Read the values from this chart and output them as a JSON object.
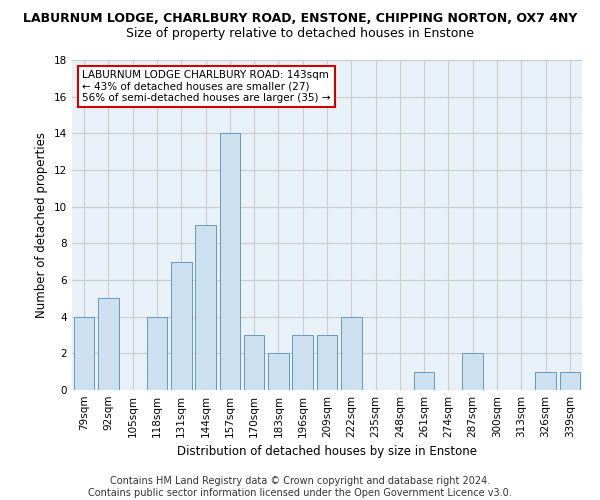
{
  "title": "LABURNUM LODGE, CHARLBURY ROAD, ENSTONE, CHIPPING NORTON, OX7 4NY",
  "subtitle": "Size of property relative to detached houses in Enstone",
  "xlabel": "Distribution of detached houses by size in Enstone",
  "ylabel": "Number of detached properties",
  "bins": [
    "79sqm",
    "92sqm",
    "105sqm",
    "118sqm",
    "131sqm",
    "144sqm",
    "157sqm",
    "170sqm",
    "183sqm",
    "196sqm",
    "209sqm",
    "222sqm",
    "235sqm",
    "248sqm",
    "261sqm",
    "274sqm",
    "287sqm",
    "300sqm",
    "313sqm",
    "326sqm",
    "339sqm"
  ],
  "values": [
    4,
    5,
    0,
    4,
    7,
    9,
    14,
    3,
    2,
    3,
    3,
    4,
    0,
    0,
    1,
    0,
    2,
    0,
    0,
    1,
    1
  ],
  "bar_color": "#cce0f0",
  "bar_edge_color": "#6699bb",
  "annotation_text": "LABURNUM LODGE CHARLBURY ROAD: 143sqm\n← 43% of detached houses are smaller (27)\n56% of semi-detached houses are larger (35) →",
  "annotation_box_color": "#ffffff",
  "annotation_box_edge": "#cc0000",
  "ylim": [
    0,
    18
  ],
  "yticks": [
    0,
    2,
    4,
    6,
    8,
    10,
    12,
    14,
    16,
    18
  ],
  "grid_color": "#cccccc",
  "bg_color": "#e8f0f8",
  "footer": "Contains HM Land Registry data © Crown copyright and database right 2024.\nContains public sector information licensed under the Open Government Licence v3.0.",
  "title_fontsize": 9,
  "subtitle_fontsize": 9,
  "xlabel_fontsize": 8.5,
  "ylabel_fontsize": 8.5,
  "footer_fontsize": 7,
  "tick_fontsize": 7.5,
  "annot_fontsize": 7.5
}
